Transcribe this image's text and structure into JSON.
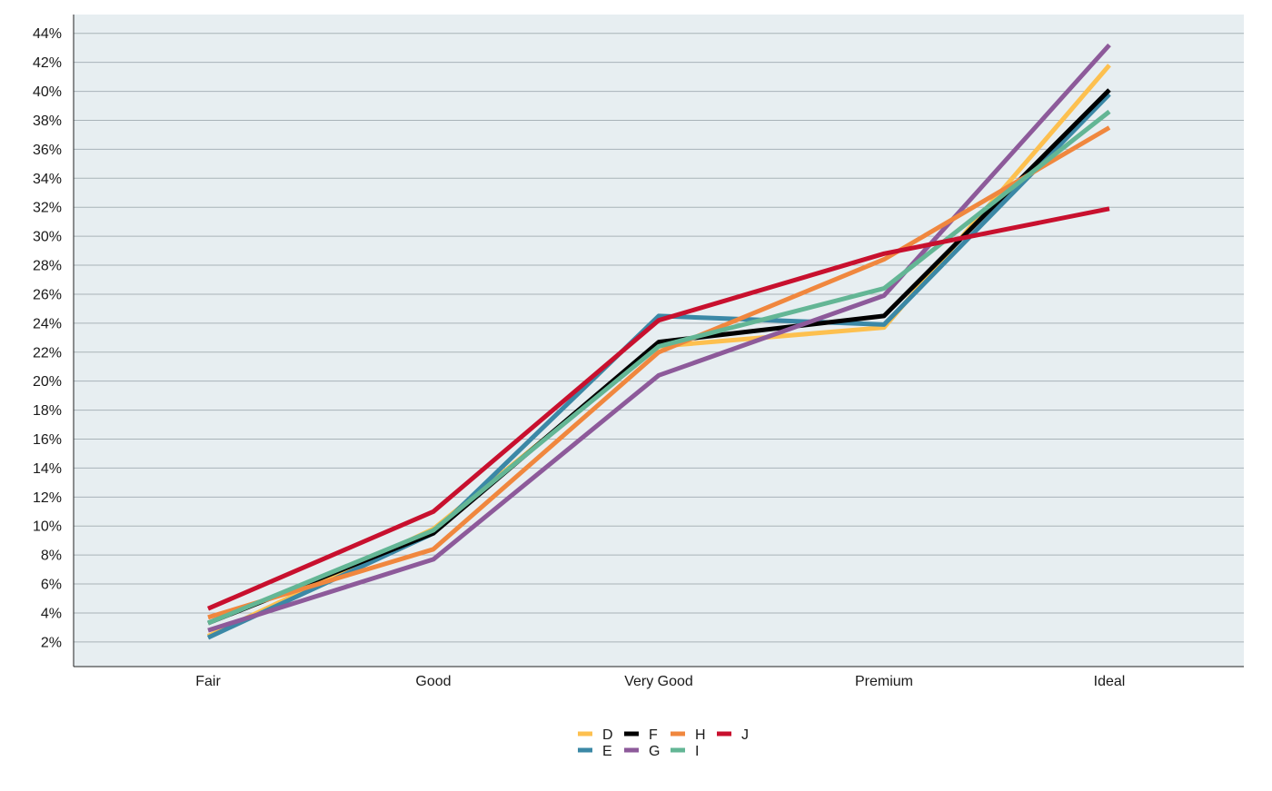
{
  "chart_data": {
    "type": "line",
    "title": "",
    "xlabel": "",
    "ylabel": "",
    "categories": [
      "Fair",
      "Good",
      "Very Good",
      "Premium",
      "Ideal"
    ],
    "y_ticks": [
      "2%",
      "4%",
      "6%",
      "8%",
      "10%",
      "12%",
      "14%",
      "16%",
      "18%",
      "20%",
      "22%",
      "24%",
      "26%",
      "28%",
      "30%",
      "32%",
      "34%",
      "36%",
      "38%",
      "40%",
      "42%",
      "44%"
    ],
    "ylim": [
      0.3,
      45.3
    ],
    "grid": "horizontal",
    "legend_position": "bottom",
    "background": "#e7eef1",
    "gridline_color": "#a9b3b8",
    "series": [
      {
        "name": "D",
        "color": "#fdc04f",
        "values": [
          2.4,
          9.8,
          22.4,
          23.7,
          41.8
        ]
      },
      {
        "name": "E",
        "color": "#3b88a6",
        "values": [
          2.3,
          9.5,
          24.5,
          23.9,
          39.8
        ]
      },
      {
        "name": "F",
        "color": "#000000",
        "values": [
          3.3,
          9.5,
          22.7,
          24.5,
          40.1
        ]
      },
      {
        "name": "G",
        "color": "#8d5a9a",
        "values": [
          2.8,
          7.7,
          20.4,
          25.9,
          43.2
        ]
      },
      {
        "name": "H",
        "color": "#f0873e",
        "values": [
          3.7,
          8.4,
          22.0,
          28.4,
          37.5
        ]
      },
      {
        "name": "I",
        "color": "#63b695",
        "values": [
          3.3,
          9.7,
          22.4,
          26.4,
          38.6
        ]
      },
      {
        "name": "J",
        "color": "#c8102e",
        "values": [
          4.3,
          11.0,
          24.2,
          28.8,
          31.9
        ]
      }
    ]
  }
}
